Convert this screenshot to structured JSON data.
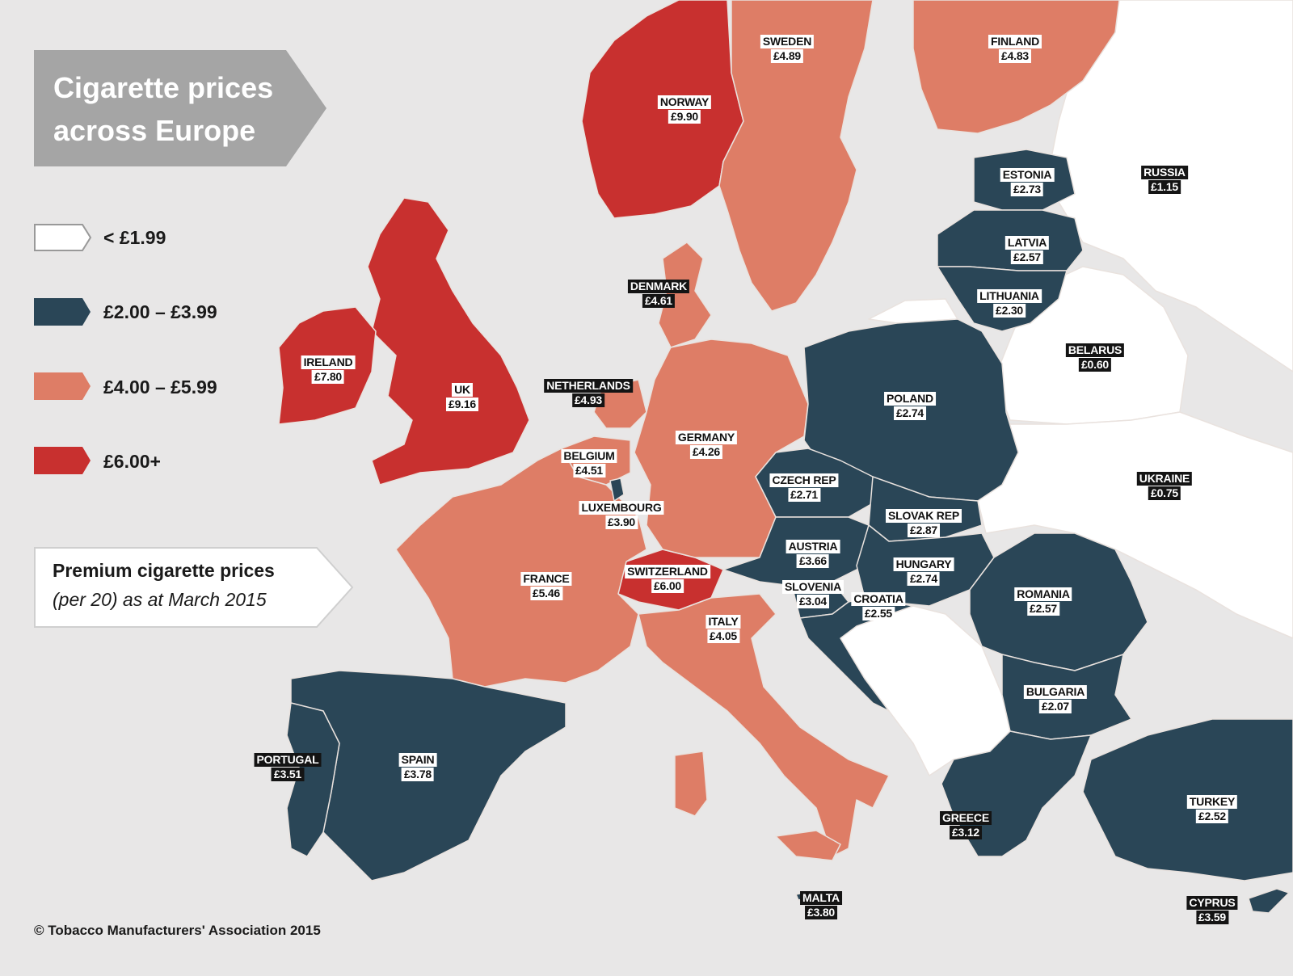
{
  "title": "Cigarette prices across Europe",
  "legend": [
    {
      "label": "< £1.99",
      "color": "#ffffff"
    },
    {
      "label": "£2.00 – £3.99",
      "color": "#2a4657"
    },
    {
      "label": "£4.00 – £5.99",
      "color": "#de7d66"
    },
    {
      "label": "£6.00+",
      "color": "#c8302f"
    }
  ],
  "note": {
    "title": "Premium cigarette prices",
    "subtitle": "(per 20) as at March 2015"
  },
  "copyright": "© Tobacco Manufacturers' Association 2015",
  "countries": [
    {
      "id": "norway",
      "name": "NORWAY",
      "price": "£9.90",
      "tier": 3,
      "style": "light"
    },
    {
      "id": "sweden",
      "name": "SWEDEN",
      "price": "£4.89",
      "tier": 2,
      "style": "light"
    },
    {
      "id": "finland",
      "name": "FINLAND",
      "price": "£4.83",
      "tier": 2,
      "style": "light"
    },
    {
      "id": "estonia",
      "name": "ESTONIA",
      "price": "£2.73",
      "tier": 1,
      "style": "light"
    },
    {
      "id": "russia",
      "name": "RUSSIA",
      "price": "£1.15",
      "tier": 0,
      "style": "dark"
    },
    {
      "id": "latvia",
      "name": "LATVIA",
      "price": "£2.57",
      "tier": 1,
      "style": "light"
    },
    {
      "id": "denmark",
      "name": "DENMARK",
      "price": "£4.61",
      "tier": 2,
      "style": "dark"
    },
    {
      "id": "lithuania",
      "name": "LITHUANIA",
      "price": "£2.30",
      "tier": 1,
      "style": "light"
    },
    {
      "id": "ireland",
      "name": "IRELAND",
      "price": "£7.80",
      "tier": 3,
      "style": "light"
    },
    {
      "id": "belarus",
      "name": "BELARUS",
      "price": "£0.60",
      "tier": 0,
      "style": "dark"
    },
    {
      "id": "netherlands",
      "name": "NETHERLANDS",
      "price": "£4.93",
      "tier": 2,
      "style": "dark"
    },
    {
      "id": "uk",
      "name": "UK",
      "price": "£9.16",
      "tier": 3,
      "style": "light"
    },
    {
      "id": "poland",
      "name": "POLAND",
      "price": "£2.74",
      "tier": 1,
      "style": "light"
    },
    {
      "id": "germany",
      "name": "GERMANY",
      "price": "£4.26",
      "tier": 2,
      "style": "light"
    },
    {
      "id": "belgium",
      "name": "BELGIUM",
      "price": "£4.51",
      "tier": 2,
      "style": "light"
    },
    {
      "id": "czech",
      "name": "CZECH REP",
      "price": "£2.71",
      "tier": 1,
      "style": "light"
    },
    {
      "id": "ukraine",
      "name": "UKRAINE",
      "price": "£0.75",
      "tier": 0,
      "style": "dark"
    },
    {
      "id": "luxembourg",
      "name": "LUXEMBOURG",
      "price": "£3.90",
      "tier": 1,
      "style": "light"
    },
    {
      "id": "slovakia",
      "name": "SLOVAK REP",
      "price": "£2.87",
      "tier": 1,
      "style": "light"
    },
    {
      "id": "austria",
      "name": "AUSTRIA",
      "price": "£3.66",
      "tier": 1,
      "style": "light"
    },
    {
      "id": "hungary",
      "name": "HUNGARY",
      "price": "£2.74",
      "tier": 1,
      "style": "light"
    },
    {
      "id": "switzerland",
      "name": "SWITZERLAND",
      "price": "£6.00",
      "tier": 3,
      "style": "light"
    },
    {
      "id": "france",
      "name": "FRANCE",
      "price": "£5.46",
      "tier": 2,
      "style": "light"
    },
    {
      "id": "romania",
      "name": "ROMANIA",
      "price": "£2.57",
      "tier": 1,
      "style": "light"
    },
    {
      "id": "slovenia",
      "name": "SLOVENIA",
      "price": "£3.04",
      "tier": 1,
      "style": "light"
    },
    {
      "id": "croatia",
      "name": "CROATIA",
      "price": "£2.55",
      "tier": 1,
      "style": "light"
    },
    {
      "id": "italy",
      "name": "ITALY",
      "price": "£4.05",
      "tier": 2,
      "style": "light"
    },
    {
      "id": "bulgaria",
      "name": "BULGARIA",
      "price": "£2.07",
      "tier": 1,
      "style": "light"
    },
    {
      "id": "portugal",
      "name": "PORTUGAL",
      "price": "£3.51",
      "tier": 1,
      "style": "dark"
    },
    {
      "id": "spain",
      "name": "SPAIN",
      "price": "£3.78",
      "tier": 1,
      "style": "light"
    },
    {
      "id": "turkey",
      "name": "TURKEY",
      "price": "£2.52",
      "tier": 1,
      "style": "light"
    },
    {
      "id": "greece",
      "name": "GREECE",
      "price": "£3.12",
      "tier": 1,
      "style": "dark"
    },
    {
      "id": "malta",
      "name": "MALTA",
      "price": "£3.80",
      "tier": 1,
      "style": "dark"
    },
    {
      "id": "cyprus",
      "name": "CYPRUS",
      "price": "£3.59",
      "tier": 1,
      "style": "dark"
    }
  ]
}
